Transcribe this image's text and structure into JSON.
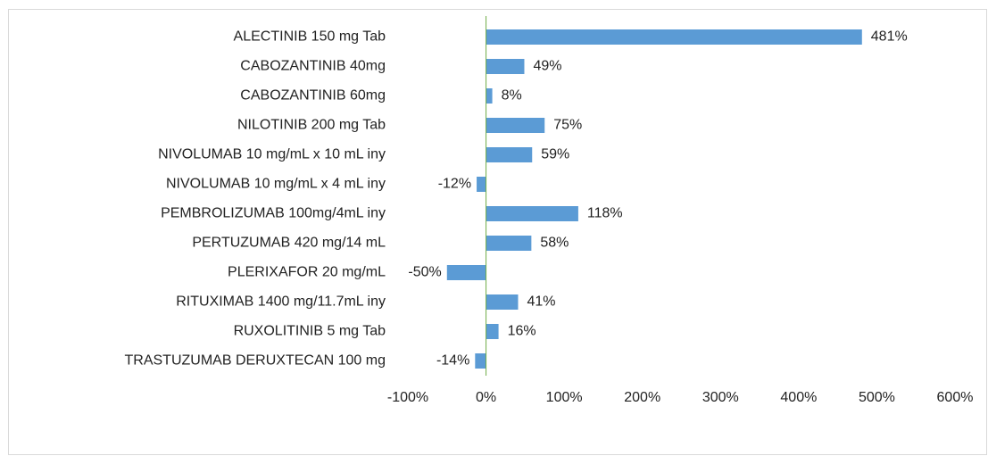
{
  "chart_data": {
    "type": "bar",
    "orientation": "horizontal",
    "categories": [
      "ALECTINIB 150 mg Tab",
      "CABOZANTINIB 40mg",
      "CABOZANTINIB 60mg",
      "NILOTINIB 200 mg Tab",
      "NIVOLUMAB 10 mg/mL x 10 mL iny",
      "NIVOLUMAB 10 mg/mL x 4 mL iny",
      "PEMBROLIZUMAB 100mg/4mL iny",
      "PERTUZUMAB 420 mg/14 mL",
      "PLERIXAFOR 20 mg/mL",
      "RITUXIMAB 1400 mg/11.7mL iny",
      "RUXOLITINIB 5 mg Tab",
      "TRASTUZUMAB DERUXTECAN 100 mg"
    ],
    "values": [
      481,
      49,
      8,
      75,
      59,
      -12,
      118,
      58,
      -50,
      41,
      16,
      -14
    ],
    "value_labels": [
      "481%",
      "49%",
      "8%",
      "75%",
      "59%",
      "-12%",
      "118%",
      "58%",
      "-50%",
      "41%",
      "16%",
      "-14%"
    ],
    "color": "#5b9bd5",
    "xlim": [
      -100,
      600
    ],
    "xticks": [
      {
        "value": -100,
        "label": "-100%"
      },
      {
        "value": 0,
        "label": "0%"
      },
      {
        "value": 100,
        "label": "100%"
      },
      {
        "value": 200,
        "label": "200%"
      },
      {
        "value": 300,
        "label": "300%"
      },
      {
        "value": 400,
        "label": "400%"
      },
      {
        "value": 500,
        "label": "500%"
      },
      {
        "value": 600,
        "label": "600%"
      }
    ],
    "grid": false
  }
}
